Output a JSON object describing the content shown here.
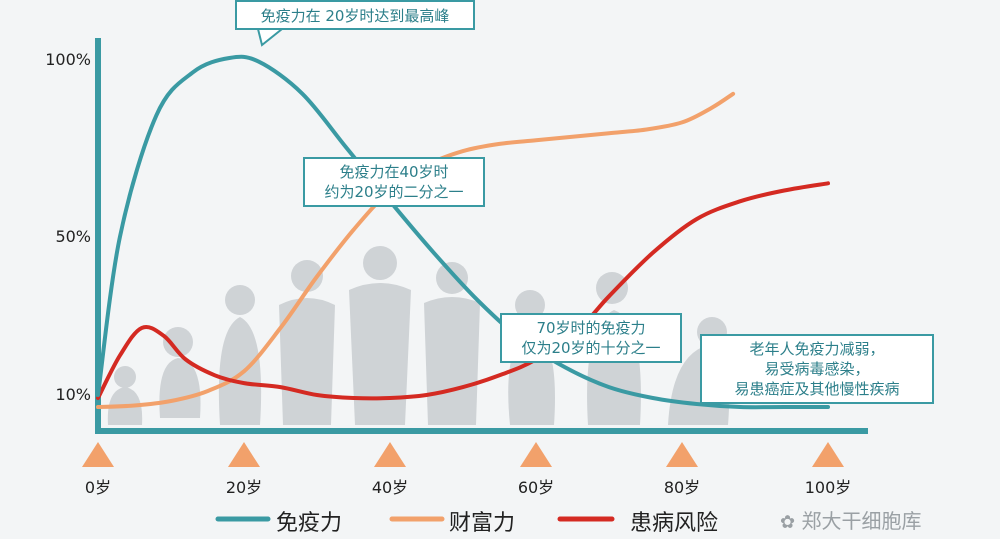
{
  "chart_data": {
    "type": "line",
    "x_ticks": [
      "0岁",
      "20岁",
      "40岁",
      "60岁",
      "80岁",
      "100岁"
    ],
    "y_ticks": [
      "10%",
      "50%",
      "100%"
    ],
    "series": [
      {
        "name": "免疫力",
        "color": "#3a9aa3",
        "points": [
          [
            0,
            10
          ],
          [
            3,
            50
          ],
          [
            8,
            84
          ],
          [
            13,
            96
          ],
          [
            18,
            100
          ],
          [
            22,
            99
          ],
          [
            28,
            90
          ],
          [
            34,
            75
          ],
          [
            40,
            60
          ],
          [
            46,
            46
          ],
          [
            52,
            34
          ],
          [
            58,
            24
          ],
          [
            64,
            17
          ],
          [
            70,
            12
          ],
          [
            76,
            9
          ],
          [
            82,
            7
          ],
          [
            88,
            6
          ],
          [
            94,
            6
          ],
          [
            100,
            6
          ]
        ]
      },
      {
        "name": "财富力",
        "color": "#f2a16b",
        "points": [
          [
            0,
            6
          ],
          [
            5,
            6.5
          ],
          [
            10,
            8
          ],
          [
            15,
            11
          ],
          [
            20,
            16
          ],
          [
            25,
            27
          ],
          [
            30,
            40
          ],
          [
            35,
            52
          ],
          [
            40,
            63
          ],
          [
            45,
            70
          ],
          [
            50,
            74
          ],
          [
            55,
            76
          ],
          [
            60,
            77
          ],
          [
            65,
            78
          ],
          [
            70,
            79
          ],
          [
            75,
            80
          ],
          [
            80,
            82
          ],
          [
            84,
            86
          ],
          [
            87,
            90
          ]
        ]
      },
      {
        "name": "患病风险",
        "color": "#d42a22",
        "points": [
          [
            0,
            9
          ],
          [
            3,
            20
          ],
          [
            6,
            27
          ],
          [
            9,
            25
          ],
          [
            12,
            19
          ],
          [
            16,
            15
          ],
          [
            20,
            13
          ],
          [
            25,
            12
          ],
          [
            30,
            10
          ],
          [
            35,
            9
          ],
          [
            40,
            9
          ],
          [
            45,
            10
          ],
          [
            50,
            12
          ],
          [
            55,
            15
          ],
          [
            60,
            19
          ],
          [
            66,
            27
          ],
          [
            70,
            35
          ],
          [
            76,
            46
          ],
          [
            82,
            55
          ],
          [
            88,
            60
          ],
          [
            94,
            63
          ],
          [
            100,
            65
          ]
        ]
      }
    ],
    "annotations": [
      "免疫力在 20岁时达到最高峰",
      "免疫力在40岁时\n约为20岁的二分之一",
      "70岁时的免疫力\n仅为20岁的十分之一",
      "老年人免疫力减弱，\n易受病毒感染，\n易患癌症及其他慢性疾病"
    ],
    "legend": [
      "免疫力",
      "财富力",
      "患病风险"
    ],
    "axis_color": "#3a9aa3",
    "marker_color": "#f2a16b"
  },
  "watermark": "郑大干细胞库"
}
